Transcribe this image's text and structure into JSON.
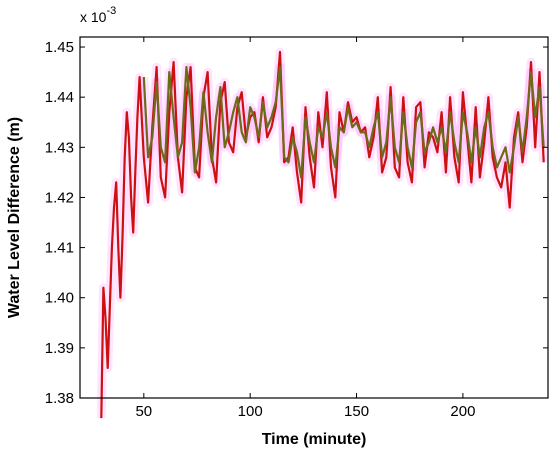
{
  "chart_data": {
    "type": "line",
    "title": "",
    "xlabel": "Time (minute)",
    "ylabel": "Water Level Difference  (m)",
    "y_multiplier_label": "x 10",
    "y_multiplier_exponent": "-3",
    "xlim": [
      20,
      240
    ],
    "ylim": [
      1.38,
      1.452
    ],
    "x_ticks": [
      50,
      100,
      150,
      200
    ],
    "y_ticks": [
      1.38,
      1.39,
      1.4,
      1.41,
      1.42,
      1.43,
      1.44,
      1.45
    ],
    "y_tick_labels": [
      "1.38",
      "1.39",
      "1.40",
      "1.41",
      "1.42",
      "1.43",
      "1.44",
      "1.45"
    ],
    "grid": false,
    "colors": {
      "series_a": "#cc1111",
      "series_b": "#6b6b1a",
      "halo": "#ff66ff"
    },
    "series": [
      {
        "x": [
          30,
          31,
          32,
          33,
          34,
          35,
          36,
          37,
          38,
          39,
          40,
          41,
          42,
          43,
          44,
          45,
          46,
          47,
          48,
          50,
          52,
          54,
          56,
          58,
          60,
          62,
          64,
          66,
          68,
          70,
          72,
          74,
          76,
          78,
          80,
          82,
          84,
          86,
          88,
          90,
          92,
          94,
          96,
          98,
          100,
          102,
          104,
          106,
          108,
          110,
          112,
          114,
          116,
          118,
          120,
          122,
          124,
          126,
          128,
          130,
          132,
          134,
          136,
          138,
          140,
          142,
          144,
          146,
          148,
          150,
          152,
          154,
          156,
          158,
          160,
          162,
          164,
          166,
          168,
          170,
          172,
          174,
          176,
          178,
          180,
          182,
          184,
          186,
          188,
          190,
          192,
          194,
          196,
          198,
          200,
          202,
          204,
          206,
          208,
          210,
          212,
          214,
          216,
          218,
          220,
          222,
          224,
          226,
          228,
          230,
          232,
          234,
          236,
          238
        ],
        "values": [
          1.376,
          1.402,
          1.396,
          1.386,
          1.398,
          1.41,
          1.418,
          1.423,
          1.41,
          1.4,
          1.412,
          1.428,
          1.437,
          1.432,
          1.42,
          1.413,
          1.425,
          1.436,
          1.444,
          1.428,
          1.419,
          1.434,
          1.446,
          1.424,
          1.42,
          1.437,
          1.447,
          1.428,
          1.421,
          1.44,
          1.446,
          1.426,
          1.424,
          1.44,
          1.445,
          1.428,
          1.423,
          1.439,
          1.443,
          1.431,
          1.429,
          1.438,
          1.441,
          1.432,
          1.436,
          1.437,
          1.431,
          1.44,
          1.432,
          1.434,
          1.438,
          1.449,
          1.427,
          1.428,
          1.434,
          1.425,
          1.419,
          1.438,
          1.428,
          1.422,
          1.437,
          1.43,
          1.441,
          1.426,
          1.42,
          1.437,
          1.433,
          1.439,
          1.435,
          1.436,
          1.433,
          1.434,
          1.428,
          1.432,
          1.44,
          1.425,
          1.428,
          1.442,
          1.426,
          1.424,
          1.44,
          1.427,
          1.423,
          1.438,
          1.439,
          1.426,
          1.433,
          1.432,
          1.429,
          1.437,
          1.425,
          1.44,
          1.428,
          1.423,
          1.441,
          1.432,
          1.423,
          1.438,
          1.424,
          1.431,
          1.44,
          1.428,
          1.424,
          1.422,
          1.427,
          1.418,
          1.432,
          1.437,
          1.427,
          1.434,
          1.447,
          1.43,
          1.445,
          1.427
        ]
      },
      {
        "x": [
          50,
          52,
          54,
          56,
          58,
          60,
          62,
          64,
          66,
          68,
          70,
          72,
          74,
          76,
          78,
          80,
          82,
          84,
          86,
          88,
          90,
          92,
          94,
          96,
          98,
          100,
          102,
          104,
          106,
          108,
          110,
          112,
          114,
          116,
          118,
          120,
          122,
          124,
          126,
          128,
          130,
          132,
          134,
          136,
          138,
          140,
          142,
          144,
          146,
          148,
          150,
          152,
          154,
          156,
          158,
          160,
          162,
          164,
          166,
          168,
          170,
          172,
          174,
          176,
          178,
          180,
          182,
          184,
          186,
          188,
          190,
          192,
          194,
          196,
          198,
          200,
          202,
          204,
          206,
          208,
          210,
          212,
          214,
          216,
          218,
          220,
          222,
          224,
          226,
          228,
          230,
          232,
          234,
          236,
          238
        ],
        "values": [
          1.444,
          1.428,
          1.432,
          1.443,
          1.43,
          1.427,
          1.445,
          1.436,
          1.428,
          1.431,
          1.446,
          1.438,
          1.425,
          1.43,
          1.441,
          1.433,
          1.427,
          1.436,
          1.442,
          1.43,
          1.433,
          1.437,
          1.44,
          1.433,
          1.431,
          1.438,
          1.436,
          1.432,
          1.439,
          1.434,
          1.436,
          1.439,
          1.446,
          1.428,
          1.427,
          1.432,
          1.429,
          1.424,
          1.436,
          1.431,
          1.427,
          1.434,
          1.432,
          1.437,
          1.43,
          1.426,
          1.434,
          1.433,
          1.438,
          1.434,
          1.435,
          1.433,
          1.433,
          1.43,
          1.434,
          1.437,
          1.428,
          1.431,
          1.44,
          1.43,
          1.427,
          1.437,
          1.43,
          1.426,
          1.435,
          1.437,
          1.429,
          1.431,
          1.434,
          1.431,
          1.434,
          1.429,
          1.437,
          1.431,
          1.427,
          1.437,
          1.433,
          1.427,
          1.434,
          1.428,
          1.434,
          1.437,
          1.43,
          1.426,
          1.428,
          1.43,
          1.425,
          1.43,
          1.436,
          1.429,
          1.436,
          1.445,
          1.436,
          1.442,
          1.43
        ]
      }
    ]
  }
}
